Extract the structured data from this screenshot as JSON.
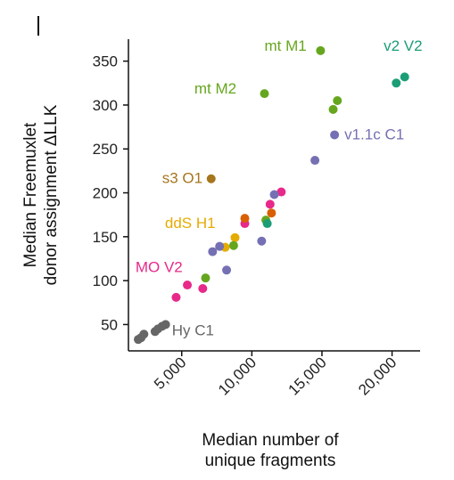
{
  "corner_mark": "|",
  "chart_data": {
    "type": "scatter",
    "title": "",
    "xlabel": [
      "Median number of",
      "unique fragments"
    ],
    "ylabel": [
      "Median Freemuxlet",
      "donor assignment ΔLLK"
    ],
    "xlim": [
      1200,
      22000
    ],
    "ylim": [
      20,
      375
    ],
    "xticks": [
      5000,
      10000,
      15000,
      20000
    ],
    "xtick_labels": [
      "5,000",
      "10,000",
      "15,000",
      "20,000"
    ],
    "yticks": [
      50,
      100,
      150,
      200,
      250,
      300,
      350
    ],
    "ytick_labels": [
      "50",
      "100",
      "150",
      "200",
      "250",
      "300",
      "350"
    ],
    "grid": false,
    "legend": "none",
    "groups": [
      {
        "name": "Hy C1",
        "color": "#666666",
        "points": [
          [
            1900,
            33
          ],
          [
            2100,
            35
          ],
          [
            2300,
            39
          ],
          [
            3100,
            42
          ],
          [
            3300,
            45
          ],
          [
            3600,
            48
          ],
          [
            3850,
            50
          ]
        ]
      },
      {
        "name": "MO V2",
        "color": "#e7298a",
        "points": [
          [
            4600,
            81
          ],
          [
            5400,
            95
          ],
          [
            6500,
            91
          ],
          [
            9500,
            165
          ],
          [
            11300,
            187
          ],
          [
            12100,
            201
          ]
        ]
      },
      {
        "name": "ddS H1",
        "color": "#e6ab02",
        "points": [
          [
            8100,
            138
          ],
          [
            8800,
            149
          ]
        ]
      },
      {
        "name": "s3 O1",
        "color": "#a6761d",
        "points": [
          [
            7100,
            216
          ]
        ]
      },
      {
        "name": "mt M2",
        "color": "#66a61e",
        "points": [
          [
            6700,
            103
          ],
          [
            8700,
            140
          ],
          [
            11000,
            169
          ],
          [
            15800,
            295
          ],
          [
            16100,
            305
          ]
        ]
      },
      {
        "name": "mt M1",
        "color": "#66a61e",
        "points": [
          [
            10900,
            313
          ],
          [
            14900,
            362
          ]
        ]
      },
      {
        "name": "v1.1c C1",
        "color": "#7570b3",
        "points": [
          [
            7200,
            133
          ],
          [
            7700,
            139
          ],
          [
            8200,
            112
          ],
          [
            10700,
            145
          ],
          [
            11600,
            198
          ],
          [
            14500,
            237
          ],
          [
            15900,
            266
          ]
        ]
      },
      {
        "name": "v2 V2",
        "color": "#1b9e77",
        "points": [
          [
            11100,
            165
          ],
          [
            20300,
            325
          ],
          [
            20900,
            332
          ]
        ]
      },
      {
        "name": "",
        "color": "#d95f02",
        "points": [
          [
            9500,
            171
          ],
          [
            11400,
            177
          ]
        ]
      }
    ],
    "annotations": [
      {
        "text": "mt M1",
        "x": 10900,
        "y": 362,
        "color": "#66a61e"
      },
      {
        "text": "v2 V2",
        "x": 19400,
        "y": 362,
        "color": "#1b9e77"
      },
      {
        "text": "mt M2",
        "x": 5900,
        "y": 313,
        "color": "#66a61e"
      },
      {
        "text": "v1.1c C1",
        "x": 16600,
        "y": 261,
        "color": "#7570b3"
      },
      {
        "text": "s3 O1",
        "x": 3600,
        "y": 211,
        "color": "#a6761d"
      },
      {
        "text": "ddS H1",
        "x": 3800,
        "y": 160,
        "color": "#e6ab02"
      },
      {
        "text": "MO V2",
        "x": 1700,
        "y": 110,
        "color": "#e7298a"
      },
      {
        "text": "Hy C1",
        "x": 4300,
        "y": 38,
        "color": "#666666"
      }
    ]
  }
}
